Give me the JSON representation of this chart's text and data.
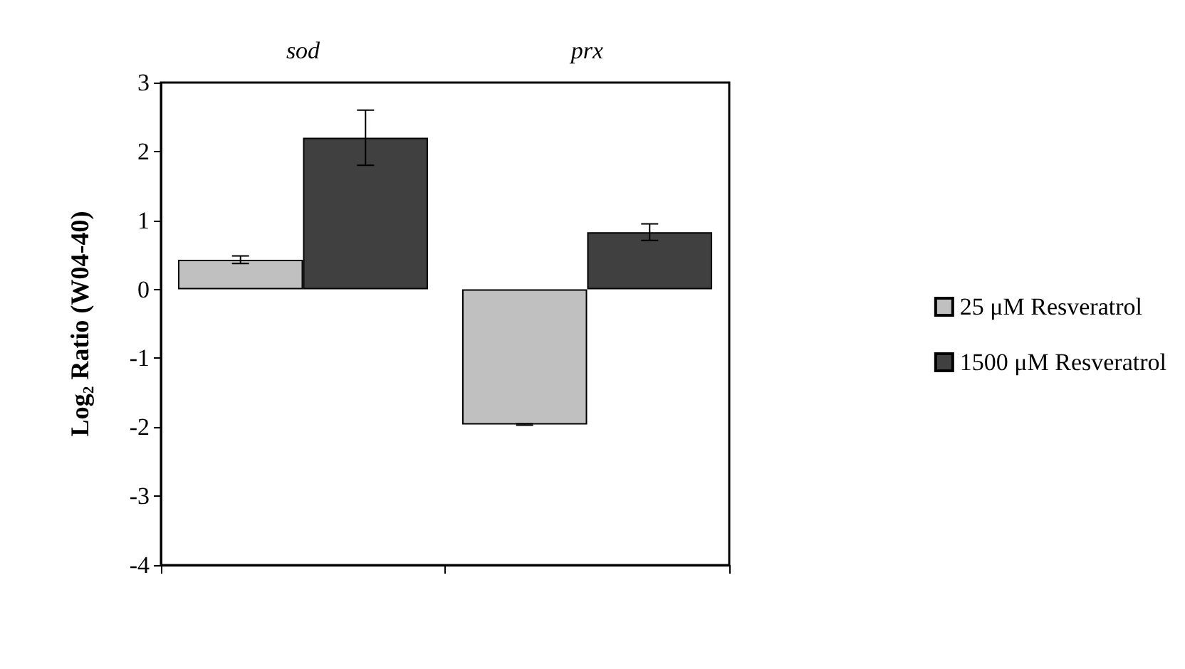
{
  "chart_data": {
    "type": "bar",
    "categories": [
      "sod",
      "prx"
    ],
    "ylabel": "Log₂ Ratio (W04-40)",
    "series": [
      {
        "name": "25 μM Resveratrol",
        "color": "#c0c0c0",
        "values": [
          0.43,
          -1.96
        ],
        "errors": [
          0.055,
          0.01
        ]
      },
      {
        "name": "1500 μM Resveratrol",
        "color": "#404040",
        "values": [
          2.2,
          0.83
        ],
        "errors": [
          0.4,
          0.12
        ]
      }
    ],
    "ylim": [
      -4,
      3
    ],
    "yticks": [
      -4,
      -3,
      -2,
      -1,
      0,
      1,
      2,
      3
    ],
    "grid": false,
    "legend": "right"
  }
}
